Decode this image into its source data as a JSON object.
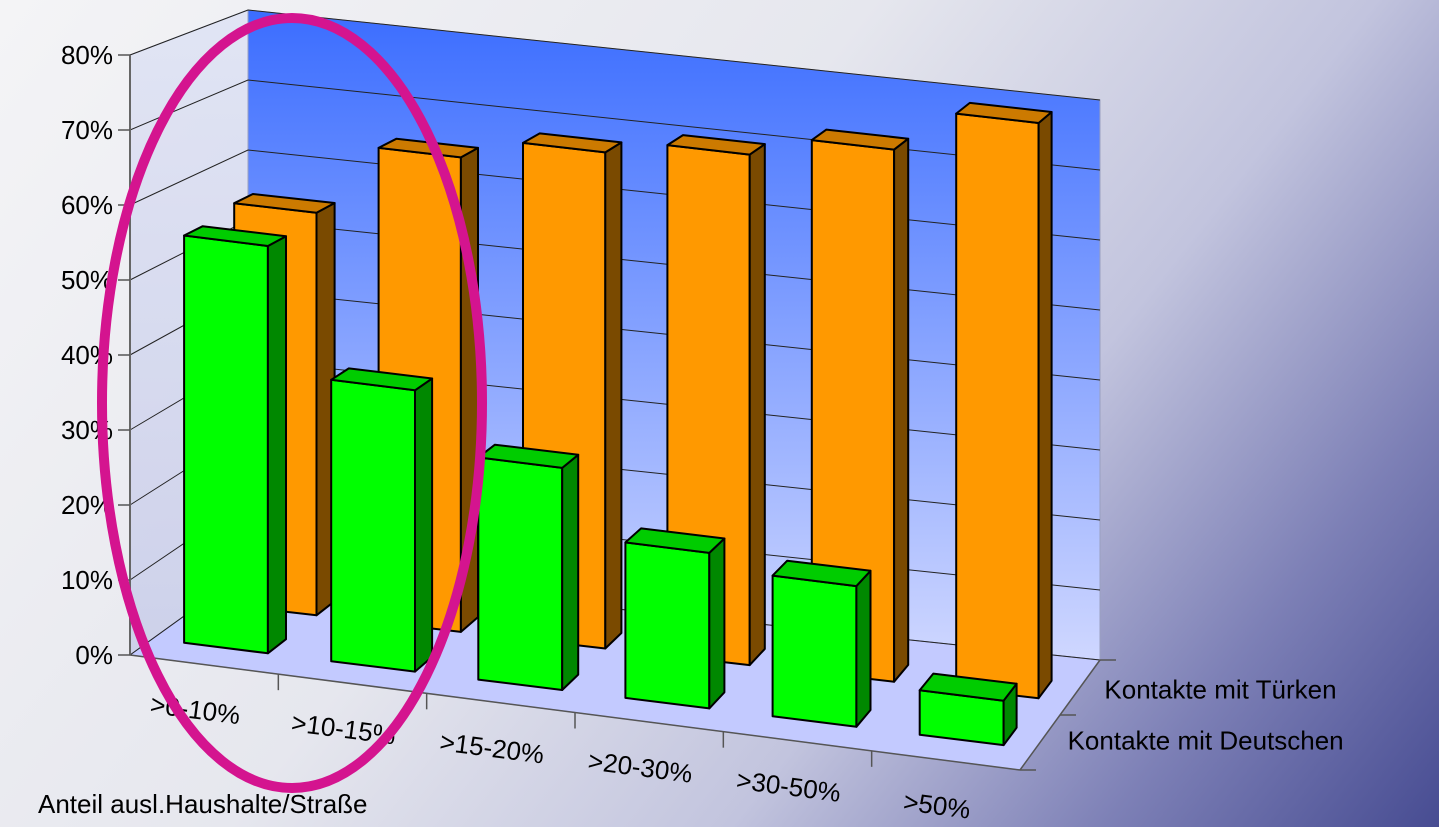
{
  "chart_data": {
    "type": "bar",
    "subtype": "3d-column",
    "categories": [
      ">0-10%",
      ">10-15%",
      ">15-20%",
      ">20-30%",
      ">30-50%",
      ">50%"
    ],
    "series": [
      {
        "name": "Kontakte mit Deutschen",
        "values": [
          55,
          38,
          30,
          21,
          19,
          6
        ]
      },
      {
        "name": "Kontakte mit Türken",
        "values": [
          56,
          66,
          69,
          71,
          74,
          80
        ]
      }
    ],
    "xlabel": "Anteil ausl.Haushalte/Straße",
    "ylabel": "",
    "ylim": [
      0,
      80
    ],
    "yticks": [
      "0%",
      "10%",
      "20%",
      "30%",
      "40%",
      "50%",
      "60%",
      "70%",
      "80%"
    ],
    "grid": true,
    "legend_position": "right, along depth axis",
    "colors": {
      "Kontakte mit Deutschen": {
        "front": "#00ff00",
        "side": "#008800",
        "top": "#00cc00"
      },
      "Kontakte mit Türken": {
        "front": "#ff9900",
        "side": "#7a4a00",
        "top": "#cc7a00"
      },
      "back_wall_top": "#3b6dff",
      "back_wall_bottom": "#c9d4ff",
      "floor": "#c0c8ff",
      "highlight_ellipse": "#d4148f"
    },
    "annotation": "ellipse highlighting category >0-10% and >10-15%"
  }
}
